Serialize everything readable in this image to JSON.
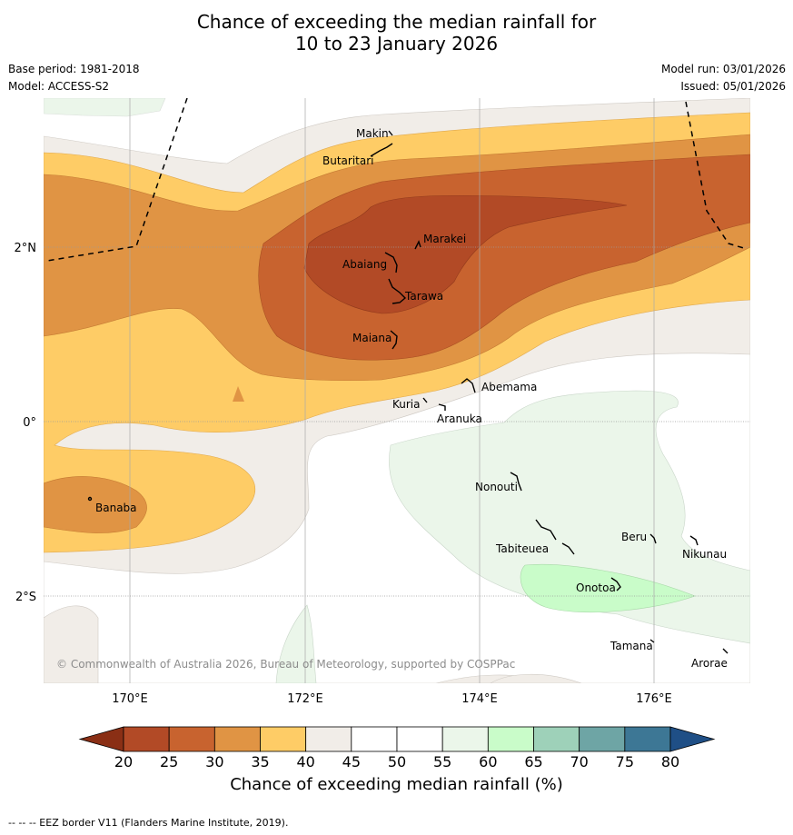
{
  "title_line1": "Chance of exceeding the median rainfall for",
  "title_line2": "10 to 23 January 2026",
  "meta": {
    "base_period": "Base period: 1981-2018",
    "model": "Model: ACCESS-S2",
    "model_run": "Model run: 03/01/2026",
    "issued": "Issued: 05/01/2026"
  },
  "map": {
    "x_ticks": [
      "170°E",
      "172°E",
      "174°E",
      "176°E"
    ],
    "y_ticks": [
      "2°N",
      "0°",
      "2°S"
    ],
    "places": [
      "Makin",
      "Butaritari",
      "Marakei",
      "Abaiang",
      "Tarawa",
      "Maiana",
      "Abemama",
      "Kuria",
      "Aranuka",
      "Nonouti",
      "Banaba",
      "Tabiteuea",
      "Beru",
      "Nikunau",
      "Onotoa",
      "Tamana",
      "Arorae"
    ],
    "copyright": "© Commonwealth of Australia 2026, Bureau of Meteorology, supported by COSPPac"
  },
  "colorbar": {
    "labels": [
      "20",
      "25",
      "30",
      "35",
      "40",
      "45",
      "50",
      "55",
      "60",
      "65",
      "70",
      "75",
      "80"
    ],
    "colors": [
      "#b24a26",
      "#c8632f",
      "#e09444",
      "#fecc66",
      "#f1ede8",
      "#ffffff",
      "#ffffff",
      "#ebf6ea",
      "#c9fcc9",
      "#9ed1b9",
      "#6ea5a5",
      "#3d7795"
    ],
    "low_color": "#8a2f15",
    "high_color": "#1f4f86",
    "title": "Chance of exceeding median rainfall (%)"
  },
  "footnote": "--  --  -- EEZ border V11 (Flanders Marine Institute, 2019)."
}
